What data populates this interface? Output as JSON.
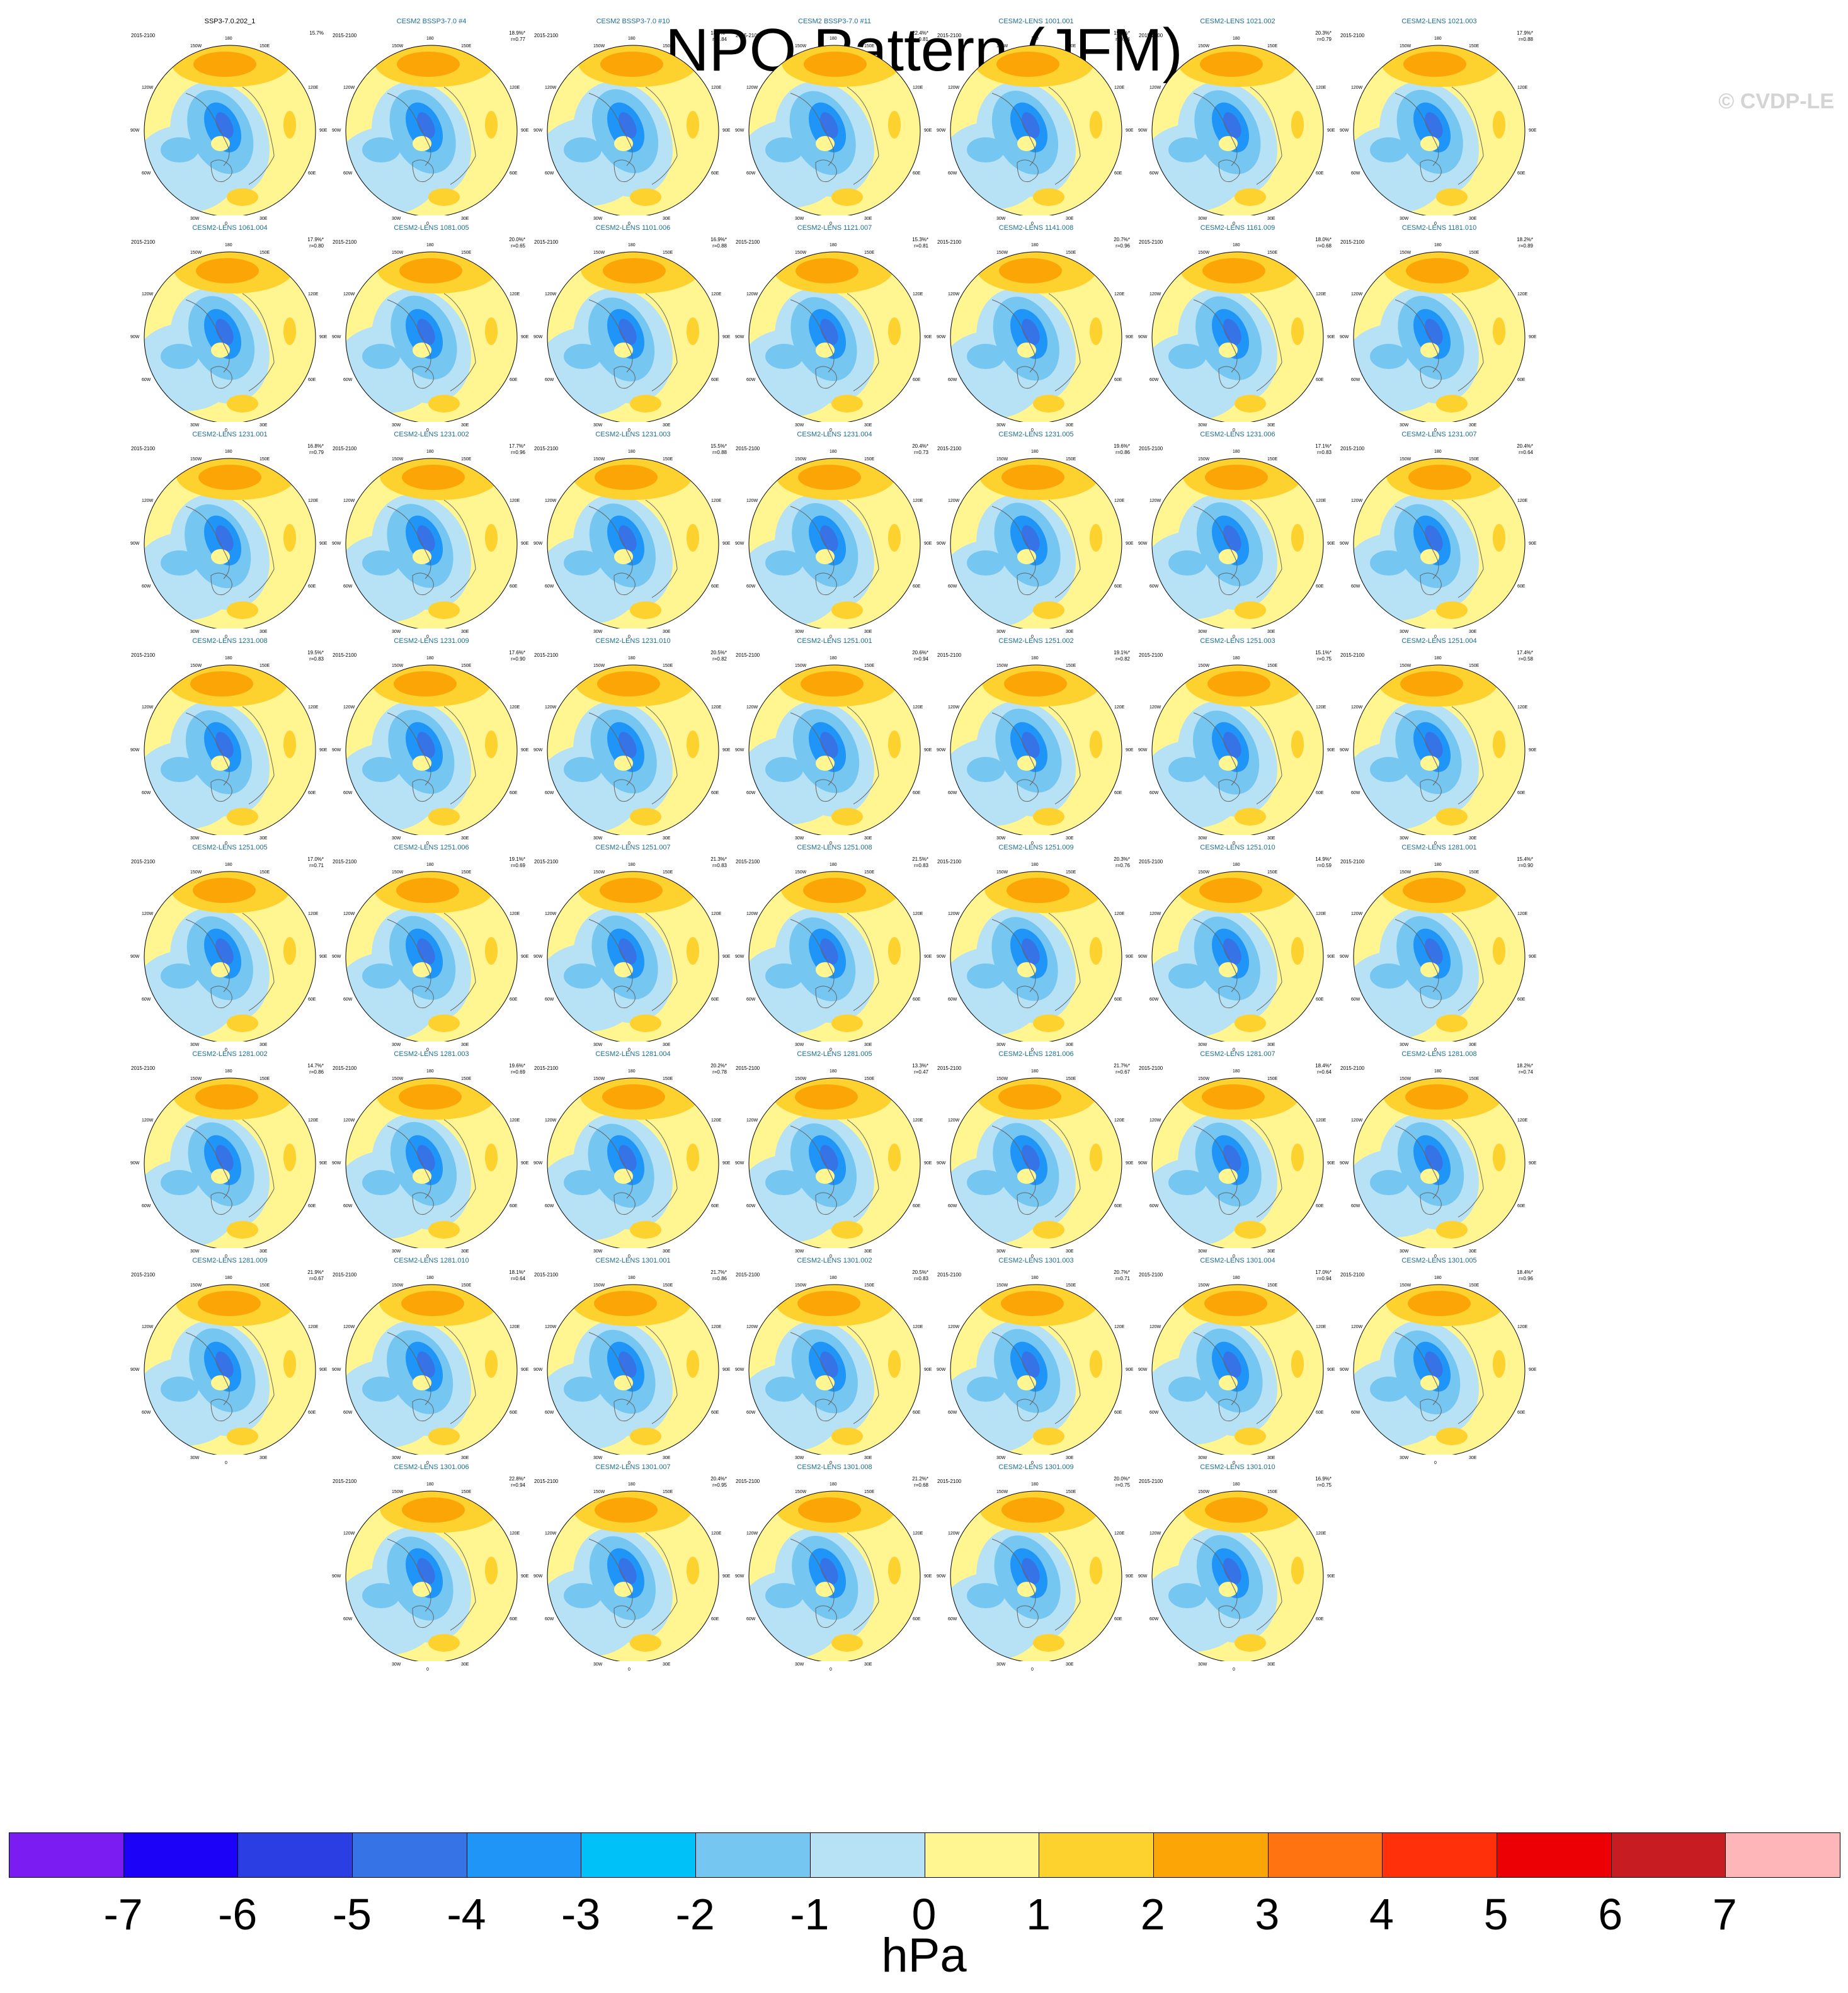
{
  "title": "NPO Pattern (JFM)",
  "watermark": "© CVDP-LE",
  "years": "2015-2100",
  "longitude_labels": [
    "180",
    "150W",
    "150E",
    "120W",
    "120E",
    "90W",
    "90E",
    "60W",
    "60E",
    "30W",
    "30E",
    "0"
  ],
  "colorbar": {
    "colors": [
      "#7b1cf2",
      "#1d02f8",
      "#2a3ee3",
      "#3673e6",
      "#1f95f7",
      "#00c2f8",
      "#75c7f2",
      "#b7e1f4",
      "#fff591",
      "#fdd12e",
      "#fba507",
      "#ff7311",
      "#ff300a",
      "#ec0005",
      "#c71c22",
      "#ffb6b8"
    ],
    "ticks": [
      "-7",
      "-6",
      "-5",
      "-4",
      "-3",
      "-2",
      "-1",
      "0",
      "1",
      "2",
      "3",
      "4",
      "5",
      "6",
      "7"
    ],
    "units": "hPa"
  },
  "panels": [
    {
      "name": "SSP3-7.0.202_1",
      "pct": "15.7%",
      "r": "",
      "obs": true
    },
    {
      "name": "CESM2 BSSP3-7.0 #4",
      "pct": "18.9%*",
      "r": "r=0.77"
    },
    {
      "name": "CESM2 BSSP3-7.0 #10",
      "pct": "18.4%*",
      "r": "r=0.84"
    },
    {
      "name": "CESM2 BSSP3-7.0 #11",
      "pct": "22.4%*",
      "r": "r=0.81"
    },
    {
      "name": "CESM2-LENS 1001.001",
      "pct": "19.0%*",
      "r": "r=0.94"
    },
    {
      "name": "CESM2-LENS 1021.002",
      "pct": "20.3%*",
      "r": "r=0.79"
    },
    {
      "name": "CESM2-LENS 1021.003",
      "pct": "17.9%*",
      "r": "r=0.88"
    },
    {
      "name": "CESM2-LENS 1061.004",
      "pct": "17.9%*",
      "r": "r=0.80"
    },
    {
      "name": "CESM2-LENS 1081.005",
      "pct": "20.0%*",
      "r": "r=0.65"
    },
    {
      "name": "CESM2-LENS 1101.006",
      "pct": "16.9%*",
      "r": "r=0.88"
    },
    {
      "name": "CESM2-LENS 1121.007",
      "pct": "15.3%*",
      "r": "r=0.81"
    },
    {
      "name": "CESM2-LENS 1141.008",
      "pct": "20.7%*",
      "r": "r=0.96"
    },
    {
      "name": "CESM2-LENS 1161.009",
      "pct": "18.0%*",
      "r": "r=0.68"
    },
    {
      "name": "CESM2-LENS 1181.010",
      "pct": "18.2%*",
      "r": "r=0.89"
    },
    {
      "name": "CESM2-LENS 1231.001",
      "pct": "16.8%*",
      "r": "r=0.79"
    },
    {
      "name": "CESM2-LENS 1231.002",
      "pct": "17.7%*",
      "r": "r=0.96"
    },
    {
      "name": "CESM2-LENS 1231.003",
      "pct": "15.5%*",
      "r": "r=0.88"
    },
    {
      "name": "CESM2-LENS 1231.004",
      "pct": "20.4%*",
      "r": "r=0.73"
    },
    {
      "name": "CESM2-LENS 1231.005",
      "pct": "19.6%*",
      "r": "r=0.86"
    },
    {
      "name": "CESM2-LENS 1231.006",
      "pct": "17.1%*",
      "r": "r=0.83"
    },
    {
      "name": "CESM2-LENS 1231.007",
      "pct": "20.4%*",
      "r": "r=0.64"
    },
    {
      "name": "CESM2-LENS 1231.008",
      "pct": "19.5%*",
      "r": "r=0.83"
    },
    {
      "name": "CESM2-LENS 1231.009",
      "pct": "17.6%*",
      "r": "r=0.90"
    },
    {
      "name": "CESM2-LENS 1231.010",
      "pct": "20.5%*",
      "r": "r=0.82"
    },
    {
      "name": "CESM2-LENS 1251.001",
      "pct": "20.6%*",
      "r": "r=0.94"
    },
    {
      "name": "CESM2-LENS 1251.002",
      "pct": "19.1%*",
      "r": "r=0.82"
    },
    {
      "name": "CESM2-LENS 1251.003",
      "pct": "15.1%*",
      "r": "r=0.75"
    },
    {
      "name": "CESM2-LENS 1251.004",
      "pct": "17.4%*",
      "r": "r=0.58"
    },
    {
      "name": "CESM2-LENS 1251.005",
      "pct": "17.0%*",
      "r": "r=0.71"
    },
    {
      "name": "CESM2-LENS 1251.006",
      "pct": "19.1%*",
      "r": "r=0.69"
    },
    {
      "name": "CESM2-LENS 1251.007",
      "pct": "21.3%*",
      "r": "r=0.83"
    },
    {
      "name": "CESM2-LENS 1251.008",
      "pct": "21.5%*",
      "r": "r=0.83"
    },
    {
      "name": "CESM2-LENS 1251.009",
      "pct": "20.3%*",
      "r": "r=0.76"
    },
    {
      "name": "CESM2-LENS 1251.010",
      "pct": "14.9%*",
      "r": "r=0.59"
    },
    {
      "name": "CESM2-LENS 1281.001",
      "pct": "15.4%*",
      "r": "r=0.90"
    },
    {
      "name": "CESM2-LENS 1281.002",
      "pct": "14.7%*",
      "r": "r=0.86"
    },
    {
      "name": "CESM2-LENS 1281.003",
      "pct": "19.6%*",
      "r": "r=0.69"
    },
    {
      "name": "CESM2-LENS 1281.004",
      "pct": "20.2%*",
      "r": "r=0.78"
    },
    {
      "name": "CESM2-LENS 1281.005",
      "pct": "13.3%*",
      "r": "r=0.47"
    },
    {
      "name": "CESM2-LENS 1281.006",
      "pct": "21.7%*",
      "r": "r=0.67"
    },
    {
      "name": "CESM2-LENS 1281.007",
      "pct": "18.4%*",
      "r": "r=0.64"
    },
    {
      "name": "CESM2-LENS 1281.008",
      "pct": "18.2%*",
      "r": "r=0.74"
    },
    {
      "name": "CESM2-LENS 1281.009",
      "pct": "21.9%*",
      "r": "r=0.67"
    },
    {
      "name": "CESM2-LENS 1281.010",
      "pct": "18.1%*",
      "r": "r=0.64"
    },
    {
      "name": "CESM2-LENS 1301.001",
      "pct": "21.7%*",
      "r": "r=0.86"
    },
    {
      "name": "CESM2-LENS 1301.002",
      "pct": "20.5%*",
      "r": "r=0.83"
    },
    {
      "name": "CESM2-LENS 1301.003",
      "pct": "20.7%*",
      "r": "r=0.71"
    },
    {
      "name": "CESM2-LENS 1301.004",
      "pct": "17.0%*",
      "r": "r=0.94"
    },
    {
      "name": "CESM2-LENS 1301.005",
      "pct": "18.4%*",
      "r": "r=0.96"
    },
    {
      "name": "CESM2-LENS 1301.006",
      "pct": "22.8%*",
      "r": "r=0.94"
    },
    {
      "name": "CESM2-LENS 1301.007",
      "pct": "20.4%*",
      "r": "r=0.95"
    },
    {
      "name": "CESM2-LENS 1301.008",
      "pct": "21.2%*",
      "r": "r=0.68"
    },
    {
      "name": "CESM2-LENS 1301.009",
      "pct": "20.0%*",
      "r": "r=0.75"
    },
    {
      "name": "CESM2-LENS 1301.010",
      "pct": "16.9%*",
      "r": "r=0.75"
    }
  ]
}
